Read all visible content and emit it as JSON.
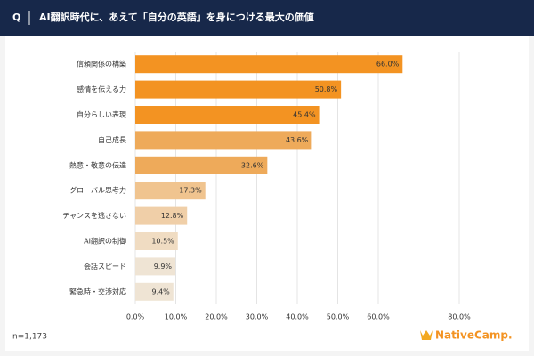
{
  "chart_data": {
    "type": "hbar",
    "question_marker": "Q",
    "title": "AI翻訳時代に、あえて「自分の英語」を身につける最大の価値",
    "categories": [
      "信頼関係の構築",
      "感情を伝える力",
      "自分らしい表現",
      "自己成長",
      "熱意・敬意の伝達",
      "グローバル思考力",
      "チャンスを逃さない",
      "AI翻訳の制御",
      "会話スピード",
      "緊急時・交渉対応"
    ],
    "values": [
      66.0,
      50.8,
      45.4,
      43.6,
      32.6,
      17.3,
      12.8,
      10.5,
      9.9,
      9.4
    ],
    "value_labels": [
      "66.0%",
      "50.8%",
      "45.4%",
      "43.6%",
      "32.6%",
      "17.3%",
      "12.8%",
      "10.5%",
      "9.9%",
      "9.4%"
    ],
    "colors": [
      "#f39322",
      "#f39322",
      "#f39322",
      "#eeaa5a",
      "#eeaa5a",
      "#f0c48f",
      "#f0cfa8",
      "#f0dcc2",
      "#efe4d4",
      "#efe4d4"
    ],
    "xlim": [
      0,
      80
    ],
    "xticks": [
      {
        "value": 0,
        "label": "0.0%"
      },
      {
        "value": 10,
        "label": "10.0%"
      },
      {
        "value": 20,
        "label": "20.0%"
      },
      {
        "value": 30,
        "label": "30.0%"
      },
      {
        "value": 40,
        "label": "40.0%"
      },
      {
        "value": 50,
        "label": "50.0%"
      },
      {
        "value": 60,
        "label": "60.0%"
      },
      {
        "value": 80,
        "label": "80.0%"
      }
    ],
    "grid": true,
    "note": "n=1,173",
    "brand": "NativeCamp."
  }
}
